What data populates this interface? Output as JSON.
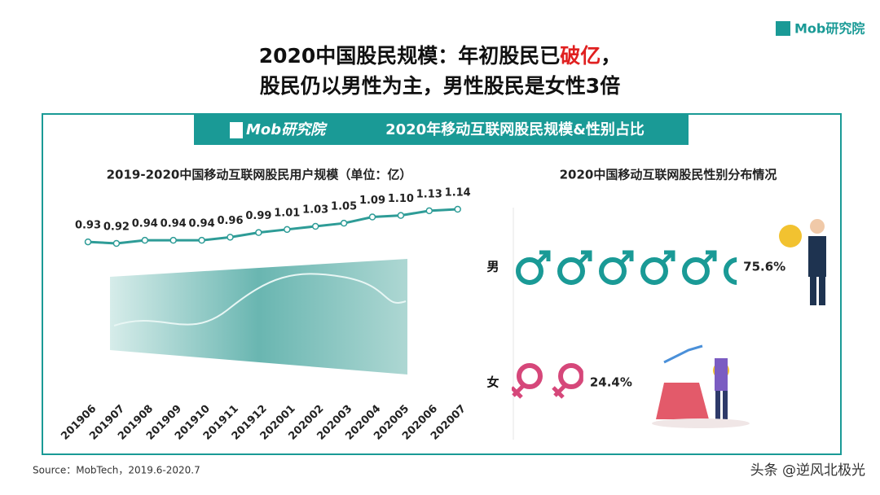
{
  "header": {
    "logo": "Mob研究院",
    "title_line1": [
      "2020中国股民规模：年初股民已",
      "破亿",
      "，"
    ],
    "title_line2": "股民仍以男性为主，男性股民是女性3倍"
  },
  "banner": {
    "logo": "Mob研究院",
    "title": "2020年移动互联网股民规模&性别占比"
  },
  "chart_data": [
    {
      "type": "line",
      "title": "2019-2020中国移动互联网股民用户规模（单位：亿）",
      "color": "#2e9c97",
      "categories": [
        "201906",
        "201907",
        "201908",
        "201909",
        "201910",
        "201911",
        "201912",
        "202001",
        "202002",
        "202003",
        "202004",
        "202005",
        "202006",
        "202007"
      ],
      "values": [
        0.93,
        0.92,
        0.94,
        0.94,
        0.94,
        0.96,
        0.99,
        1.01,
        1.03,
        1.05,
        1.09,
        1.1,
        1.13,
        1.14
      ],
      "value_labels": [
        "0.93",
        "0.92",
        "0.94",
        "0.94",
        "0.94",
        "0.96",
        "0.99",
        "1.01",
        "1.03",
        "1.05",
        "1.09",
        "1.10",
        "1.13",
        "1.14"
      ]
    },
    {
      "type": "pictogram",
      "title": "2020中国移动互联网股民性别分布情况",
      "categories": [
        "男",
        "女"
      ],
      "values": [
        75.6,
        24.4
      ],
      "value_labels": [
        "75.6%",
        "24.4%"
      ],
      "colors": [
        "#1a9a96",
        "#d6477a"
      ]
    }
  ],
  "footer": {
    "source": "Source：MobTech，2019.6-2020.7",
    "watermark": "头条 @逆风北极光"
  }
}
